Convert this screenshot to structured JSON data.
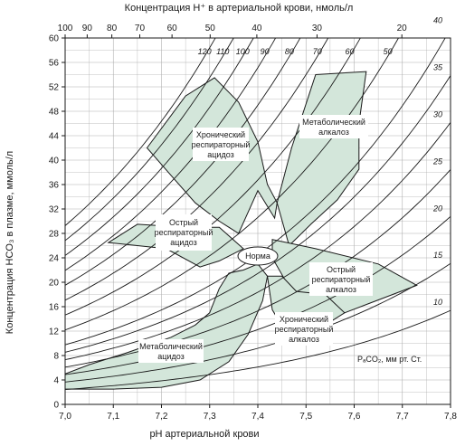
{
  "chart_data": {
    "type": "acid-base-nomogram",
    "title": "",
    "xlabel": "pH артериальной крови",
    "ylabel": "Концентрация HCO₃ в плазме, ммоль/л",
    "top_axis_label": "Концентрация H⁺ в артериальной крови, нмоль/л",
    "xlim": [
      7.0,
      7.8
    ],
    "ylim": [
      0,
      60
    ],
    "grid": true,
    "x_ticks": [
      "7,0",
      "7,1",
      "7,2",
      "7,3",
      "7,4",
      "7,5",
      "7,6",
      "7,7",
      "7,8"
    ],
    "y_ticks": [
      "0",
      "4",
      "8",
      "12",
      "16",
      "20",
      "24",
      "28",
      "32",
      "36",
      "40",
      "44",
      "48",
      "52",
      "56",
      "60"
    ],
    "top_ticks": [
      {
        "label": "100",
        "h": 100
      },
      {
        "label": "90",
        "h": 90
      },
      {
        "label": "80",
        "h": 80
      },
      {
        "label": "70",
        "h": 70
      },
      {
        "label": "60",
        "h": 60
      },
      {
        "label": "50",
        "h": 50
      },
      {
        "label": "40",
        "h": 40
      },
      {
        "label": "30",
        "h": 30
      },
      {
        "label": "20",
        "h": 20
      }
    ],
    "isobar_unit_label": "PₐCO₂, мм рт. Ст.",
    "isobars": [
      {
        "pco2": 120,
        "label": "120"
      },
      {
        "pco2": 110,
        "label": "110"
      },
      {
        "pco2": 100,
        "label": "100"
      },
      {
        "pco2": 90,
        "label": "90"
      },
      {
        "pco2": 80,
        "label": "80"
      },
      {
        "pco2": 70,
        "label": "70"
      },
      {
        "pco2": 60,
        "label": "60"
      },
      {
        "pco2": 50,
        "label": "50"
      },
      {
        "pco2": 40,
        "label": "40"
      },
      {
        "pco2": 35,
        "label": "35"
      },
      {
        "pco2": 30,
        "label": "30"
      },
      {
        "pco2": 25,
        "label": "25"
      },
      {
        "pco2": 20,
        "label": "20"
      },
      {
        "pco2": 15,
        "label": "15"
      },
      {
        "pco2": 10,
        "label": "10"
      }
    ],
    "regions": [
      {
        "name": "Хронический респираторный ацидоз",
        "points": [
          [
            7.17,
            42
          ],
          [
            7.25,
            50.5
          ],
          [
            7.31,
            53.5
          ],
          [
            7.36,
            49.5
          ],
          [
            7.4,
            43
          ],
          [
            7.42,
            36
          ],
          [
            7.44,
            33
          ],
          [
            7.435,
            30.5
          ],
          [
            7.4,
            35
          ],
          [
            7.36,
            28
          ],
          [
            7.32,
            30
          ],
          [
            7.27,
            33
          ],
          [
            7.22,
            37.5
          ]
        ]
      },
      {
        "name": "Метаболический алкалоз",
        "points": [
          [
            7.52,
            54
          ],
          [
            7.625,
            54.5
          ],
          [
            7.61,
            46
          ],
          [
            7.61,
            38.5
          ],
          [
            7.565,
            33.5
          ],
          [
            7.51,
            29.5
          ],
          [
            7.465,
            26
          ],
          [
            7.44,
            33
          ],
          [
            7.47,
            42
          ]
        ]
      },
      {
        "name": "Острый респираторный ацидоз",
        "points": [
          [
            7.09,
            26.5
          ],
          [
            7.15,
            29.5
          ],
          [
            7.25,
            29
          ],
          [
            7.32,
            29
          ],
          [
            7.37,
            25.5
          ],
          [
            7.32,
            23.5
          ],
          [
            7.28,
            22.5
          ],
          [
            7.21,
            25.5
          ]
        ]
      },
      {
        "name": "Острый респираторный алкалоз",
        "points": [
          [
            7.43,
            27
          ],
          [
            7.52,
            25.5
          ],
          [
            7.65,
            23
          ],
          [
            7.73,
            19.5
          ],
          [
            7.63,
            16.5
          ],
          [
            7.58,
            15
          ],
          [
            7.55,
            14.5
          ],
          [
            7.5,
            18
          ],
          [
            7.47,
            18.5
          ],
          [
            7.43,
            24
          ]
        ]
      },
      {
        "name": "Хронический респираторный алкалоз",
        "points": [
          [
            7.42,
            21
          ],
          [
            7.43,
            15.5
          ],
          [
            7.46,
            11.5
          ],
          [
            7.53,
            12.5
          ],
          [
            7.58,
            15
          ],
          [
            7.54,
            18
          ],
          [
            7.48,
            18.5
          ],
          [
            7.45,
            21
          ]
        ]
      },
      {
        "name": "Метаболический ацидоз",
        "points": [
          [
            7.0,
            5
          ],
          [
            7.05,
            6.5
          ],
          [
            7.13,
            8.5
          ],
          [
            7.22,
            11
          ],
          [
            7.27,
            13
          ],
          [
            7.3,
            15
          ],
          [
            7.32,
            19
          ],
          [
            7.34,
            21.5
          ],
          [
            7.37,
            22
          ],
          [
            7.4,
            23
          ],
          [
            7.42,
            21
          ],
          [
            7.41,
            17
          ],
          [
            7.38,
            11.5
          ],
          [
            7.34,
            7
          ],
          [
            7.28,
            4
          ],
          [
            7.2,
            2.8
          ],
          [
            7.1,
            2.5
          ],
          [
            7.0,
            2.5
          ]
        ]
      }
    ],
    "annotations": {
      "chronic_resp_acidosis": [
        "Хронический",
        "респираторный",
        "ацидоз"
      ],
      "metabolic_alkalosis": [
        "Метаболический",
        "алкалоз"
      ],
      "acute_resp_acidosis": [
        "Острый",
        "респираторный",
        "ацидоз"
      ],
      "norm": "Норма",
      "acute_resp_alkalosis": [
        "Острый",
        "респираторный",
        "алкалоз"
      ],
      "chronic_resp_alkalosis": [
        "Хронический",
        "респираторный",
        "алкалоз"
      ],
      "metabolic_acidosis": [
        "Метаболический",
        "ацидоз"
      ]
    },
    "colors": {
      "region_fill": "#d3e6da",
      "line": "#1a1a1a",
      "grid": "#b0b0b0"
    }
  }
}
